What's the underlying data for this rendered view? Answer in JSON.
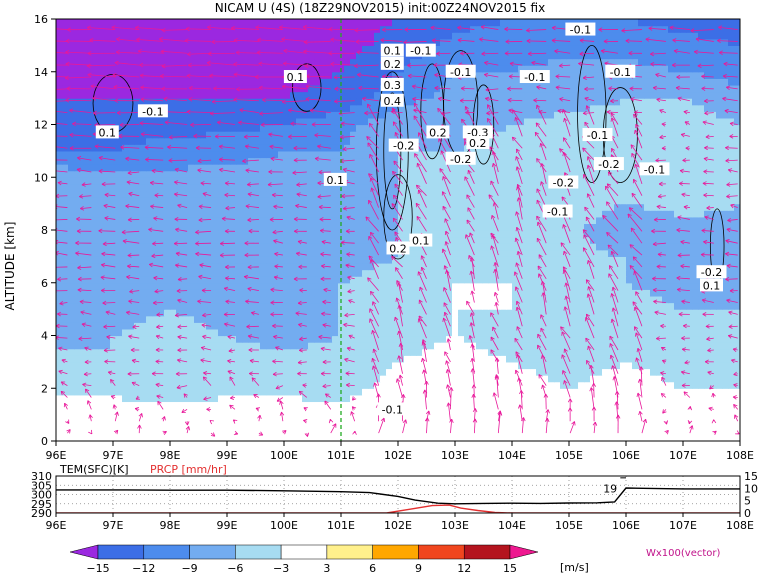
{
  "chart_data": [
    {
      "type": "heatmap",
      "title": "NICAM U (4S)  (18Z29NOV2015)  init:00Z24NOV2015  fix",
      "xlabel": "",
      "ylabel": "ALTITUDE [km]",
      "x_ticks": [
        "96E",
        "97E",
        "98E",
        "99E",
        "100E",
        "101E",
        "102E",
        "103E",
        "104E",
        "105E",
        "106E",
        "107E",
        "108E"
      ],
      "xlim": [
        96,
        108
      ],
      "y_ticks": [
        "0",
        "2",
        "4",
        "6",
        "8",
        "10",
        "12",
        "14",
        "16"
      ],
      "ylim": [
        0,
        16
      ],
      "reference_line_x": 101,
      "u_field": {
        "x": [
          96,
          97,
          98,
          99,
          100,
          101,
          102,
          103,
          104,
          105,
          106,
          107,
          108
        ],
        "y": [
          0,
          1,
          2,
          3,
          4,
          5,
          6,
          7,
          8,
          9,
          10,
          11,
          12,
          13,
          14,
          15,
          16
        ],
        "z": [
          [
            3,
            3,
            3,
            3,
            3,
            3,
            3,
            3,
            3,
            3,
            3,
            3,
            3
          ],
          [
            -1,
            -1,
            -1,
            -1,
            -1,
            -2,
            -1,
            -1,
            -1,
            -1,
            -1,
            -1,
            -1
          ],
          [
            -4,
            -4,
            -5,
            -4,
            -4,
            -4,
            -2,
            -1,
            -2,
            -3,
            -2,
            -3,
            -3
          ],
          [
            -5,
            -6,
            -6,
            -5,
            -5,
            -5,
            -3,
            -2,
            -3,
            -4,
            -3,
            -4,
            -4
          ],
          [
            -7,
            -6,
            -5,
            -6,
            -7,
            -6,
            -4,
            -3,
            -4,
            -5,
            -4,
            -5,
            -5
          ],
          [
            -6,
            -7,
            -6,
            -7,
            -6,
            -6,
            -4,
            -3,
            -3,
            -4,
            -5,
            -6,
            -6
          ],
          [
            -8,
            -7,
            -7,
            -8,
            -7,
            -6,
            -5,
            -3,
            -3,
            -4,
            -6,
            -7,
            -6
          ],
          [
            -9,
            -8,
            -8,
            -8,
            -7,
            -7,
            -6,
            -4,
            -3,
            -5,
            -6,
            -7,
            -7
          ],
          [
            -8,
            -9,
            -9,
            -8,
            -8,
            -7,
            -6,
            -4,
            -4,
            -5,
            -9,
            -7,
            -7
          ],
          [
            -7,
            -7,
            -6,
            -6,
            -7,
            -7,
            -6,
            -4,
            -4,
            -4,
            -6,
            -5,
            -6
          ],
          [
            -7,
            -8,
            -8,
            -8,
            -8,
            -8,
            -6,
            -5,
            -4,
            -5,
            -6,
            -5,
            -6
          ],
          [
            -12,
            -12,
            -11,
            -10,
            -9,
            -9,
            -6,
            -6,
            -5,
            -6,
            -5,
            -4,
            -6
          ],
          [
            -12,
            -13,
            -13,
            -13,
            -12,
            -10,
            -7,
            -7,
            -6,
            -5,
            -5,
            -4,
            -6
          ],
          [
            -15,
            -15,
            -15,
            -15,
            -15,
            -14,
            -10,
            -8,
            -8,
            -7,
            -6,
            -6,
            -8
          ],
          [
            -16,
            -16,
            -16,
            -16,
            -16,
            -15,
            -12,
            -9,
            -9,
            -8,
            -8,
            -9,
            -10
          ],
          [
            -16,
            -16,
            -16,
            -16,
            -16,
            -16,
            -14,
            -11,
            -10,
            -10,
            -10,
            -11,
            -12
          ],
          [
            -16,
            -16,
            -16,
            -16,
            -16,
            -16,
            -15,
            -13,
            -12,
            -12,
            -12,
            -13,
            -14
          ]
        ]
      },
      "contour_labels": [
        {
          "text": "0.1",
          "x": 96.9,
          "y": 11.7
        },
        {
          "text": "-0.1",
          "x": 97.7,
          "y": 12.5
        },
        {
          "text": "0.1",
          "x": 100.2,
          "y": 13.8
        },
        {
          "text": "0.1",
          "x": 100.9,
          "y": 9.9
        },
        {
          "text": "0.1",
          "x": 101.9,
          "y": 14.8
        },
        {
          "text": "-0.1",
          "x": 102.4,
          "y": 14.8
        },
        {
          "text": "0.2",
          "x": 101.9,
          "y": 14.3
        },
        {
          "text": "0.3",
          "x": 101.9,
          "y": 13.5
        },
        {
          "text": "0.4",
          "x": 101.9,
          "y": 12.9
        },
        {
          "text": "-0.2",
          "x": 102.1,
          "y": 11.2
        },
        {
          "text": "0.2",
          "x": 102.7,
          "y": 11.7
        },
        {
          "text": "-0.3",
          "x": 103.4,
          "y": 11.7
        },
        {
          "text": "0.2",
          "x": 103.4,
          "y": 11.3
        },
        {
          "text": "-0.2",
          "x": 103.1,
          "y": 10.7
        },
        {
          "text": "-0.1",
          "x": 103.1,
          "y": 14.0
        },
        {
          "text": "-0.1",
          "x": 104.4,
          "y": 13.8
        },
        {
          "text": "-0.1",
          "x": 105.2,
          "y": 15.6
        },
        {
          "text": "-0.1",
          "x": 105.9,
          "y": 14.0
        },
        {
          "text": "-0.1",
          "x": 105.5,
          "y": 11.6
        },
        {
          "text": "-0.2",
          "x": 105.7,
          "y": 10.5
        },
        {
          "text": "-0.1",
          "x": 106.5,
          "y": 10.3
        },
        {
          "text": "-0.2",
          "x": 104.9,
          "y": 9.8
        },
        {
          "text": "-0.1",
          "x": 104.8,
          "y": 8.7
        },
        {
          "text": "0.2",
          "x": 102.0,
          "y": 7.3
        },
        {
          "text": "0.1",
          "x": 102.4,
          "y": 7.6
        },
        {
          "text": "-0.2",
          "x": 107.5,
          "y": 6.4
        },
        {
          "text": "0.1",
          "x": 107.5,
          "y": 5.9
        },
        {
          "text": "-0.1",
          "x": 101.9,
          "y": 1.2
        }
      ],
      "vector_label": "Wx100(vector)",
      "vector_color": "#e8189a"
    },
    {
      "type": "line",
      "title": "",
      "left_label": "TEM(SFC)[K]",
      "right_label": "PRCP [mm/hr]",
      "x_ticks": [
        "96E",
        "97E",
        "98E",
        "99E",
        "100E",
        "101E",
        "102E",
        "103E",
        "104E",
        "105E",
        "106E",
        "107E",
        "108E"
      ],
      "xlim": [
        96,
        108
      ],
      "left_axis_ticks": [
        "290",
        "295",
        "300",
        "305",
        "310"
      ],
      "left_ylim": [
        290,
        310
      ],
      "right_axis_ticks": [
        "0",
        "5",
        "10",
        "15"
      ],
      "right_ylim": [
        0,
        15
      ],
      "annotation": "19",
      "series": [
        {
          "name": "TEM(SFC)[K]",
          "color": "#000000",
          "x": [
            96,
            97,
            98,
            99,
            100,
            101,
            101.5,
            102,
            102.3,
            102.7,
            103,
            103.5,
            104,
            104.5,
            105,
            105.5,
            105.8,
            106,
            107,
            108
          ],
          "y": [
            302.5,
            302.5,
            302.3,
            302.3,
            302.0,
            301.5,
            301.0,
            299.0,
            297.0,
            295.3,
            295.0,
            295.2,
            295.3,
            295.2,
            295.4,
            295.5,
            296.0,
            303.5,
            303.0,
            303.0
          ]
        },
        {
          "name": "PRCP [mm/hr]",
          "color": "#e33030",
          "x": [
            96,
            100,
            101,
            101.8,
            102.2,
            102.6,
            102.9,
            103.1,
            103.4,
            103.7,
            104,
            108
          ],
          "y": [
            0,
            0,
            0,
            0,
            1.5,
            3.0,
            3.2,
            2.0,
            1.0,
            0.2,
            0,
            0
          ]
        }
      ]
    },
    {
      "type": "colorbar",
      "levels": [
        "-15",
        "-12",
        "-9",
        "-6",
        "-3",
        "3",
        "6",
        "9",
        "12",
        "15"
      ],
      "colors": [
        "#9b28e0",
        "#3c6ee6",
        "#4d8ced",
        "#73acf0",
        "#a7dcf2",
        "#ffffff",
        "#fff08c",
        "#ffa700",
        "#f0461e",
        "#b4141e",
        "#ee1890"
      ],
      "unit": "[m/s]"
    }
  ]
}
